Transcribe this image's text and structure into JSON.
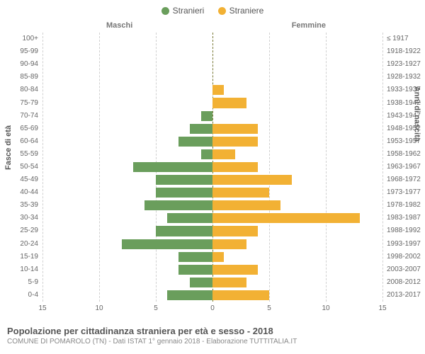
{
  "chart": {
    "type": "population-pyramid",
    "background_color": "#ffffff",
    "grid_color": "#d0d0d0",
    "center_line_color": "#777733",
    "axis_max": 15,
    "xticks": [
      -15,
      -10,
      -5,
      0,
      5,
      10,
      15
    ],
    "xtick_labels": [
      "15",
      "10",
      "5",
      "0",
      "5",
      "10",
      "15"
    ],
    "left_header": "Maschi",
    "right_header": "Femmine",
    "left_axis_title": "Fasce di età",
    "right_axis_title": "Anni di nascita",
    "legend": {
      "male": {
        "label": "Stranieri",
        "color": "#6a9e5c"
      },
      "female": {
        "label": "Straniere",
        "color": "#f2b134"
      }
    },
    "age_bins": [
      "100+",
      "95-99",
      "90-94",
      "85-89",
      "80-84",
      "75-79",
      "70-74",
      "65-69",
      "60-64",
      "55-59",
      "50-54",
      "45-49",
      "40-44",
      "35-39",
      "30-34",
      "25-29",
      "20-24",
      "15-19",
      "10-14",
      "5-9",
      "0-4"
    ],
    "birth_year_bins": [
      "≤ 1917",
      "1918-1922",
      "1923-1927",
      "1928-1932",
      "1933-1937",
      "1938-1942",
      "1943-1947",
      "1948-1952",
      "1953-1957",
      "1958-1962",
      "1963-1967",
      "1968-1972",
      "1973-1977",
      "1978-1982",
      "1983-1987",
      "1988-1992",
      "1993-1997",
      "1998-2002",
      "2003-2007",
      "2008-2012",
      "2013-2017"
    ],
    "male_values": [
      0,
      0,
      0,
      0,
      0,
      0,
      1,
      2,
      3,
      1,
      7,
      5,
      5,
      6,
      4,
      5,
      8,
      3,
      3,
      2,
      4
    ],
    "female_values": [
      0,
      0,
      0,
      0,
      1,
      3,
      0,
      4,
      4,
      2,
      4,
      7,
      5,
      6,
      13,
      4,
      3,
      1,
      4,
      3,
      5
    ],
    "bar_colors": {
      "male": "#6a9e5c",
      "female": "#f2b134"
    },
    "tick_label_color": "#666666",
    "tick_fontsize": 10,
    "header_fontsize": 11
  },
  "footer": {
    "title": "Popolazione per cittadinanza straniera per età e sesso - 2018",
    "subtitle": "COMUNE DI POMAROLO (TN) - Dati ISTAT 1° gennaio 2018 - Elaborazione TUTTITALIA.IT"
  }
}
